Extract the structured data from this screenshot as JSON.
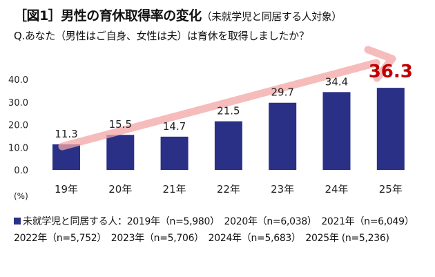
{
  "title": "［図1］男性の育休取得率の変化",
  "title_sub": "（未就学児と同居する人対象）",
  "question": "Q.あなた（男性はご自身、女性は夫）は育休を取得しましたか？",
  "legend": {
    "label": "未就学児と同居する人：2019年（n=5,980）　2020年（n=6,038）　2021年（n=6,049）　2022年（n=5,752）　2023年（n=5,706）　2024年（n=5,683）　2025年 (n=5,236)"
  },
  "chart_data": {
    "type": "bar",
    "categories": [
      "19年",
      "20年",
      "21年",
      "22年",
      "23年",
      "24年",
      "25年"
    ],
    "series": [
      {
        "name": "未就学児と同居する人",
        "values": [
          11.3,
          15.5,
          14.7,
          21.5,
          29.7,
          34.4,
          36.3
        ]
      }
    ],
    "data_labels": [
      "11.3",
      "15.5",
      "14.7",
      "21.5",
      "29.7",
      "34.4",
      "36.3"
    ],
    "ylabel": "(%)",
    "ylim": [
      0,
      40
    ],
    "yticks": [
      "0.0",
      "10.0",
      "20.0",
      "30.0",
      "40.0"
    ],
    "grid": false,
    "highlight": {
      "index": 6,
      "color": "#c00000"
    },
    "bar_color": "#2b3087",
    "trend_arrow_color": "#f4a6a6"
  }
}
